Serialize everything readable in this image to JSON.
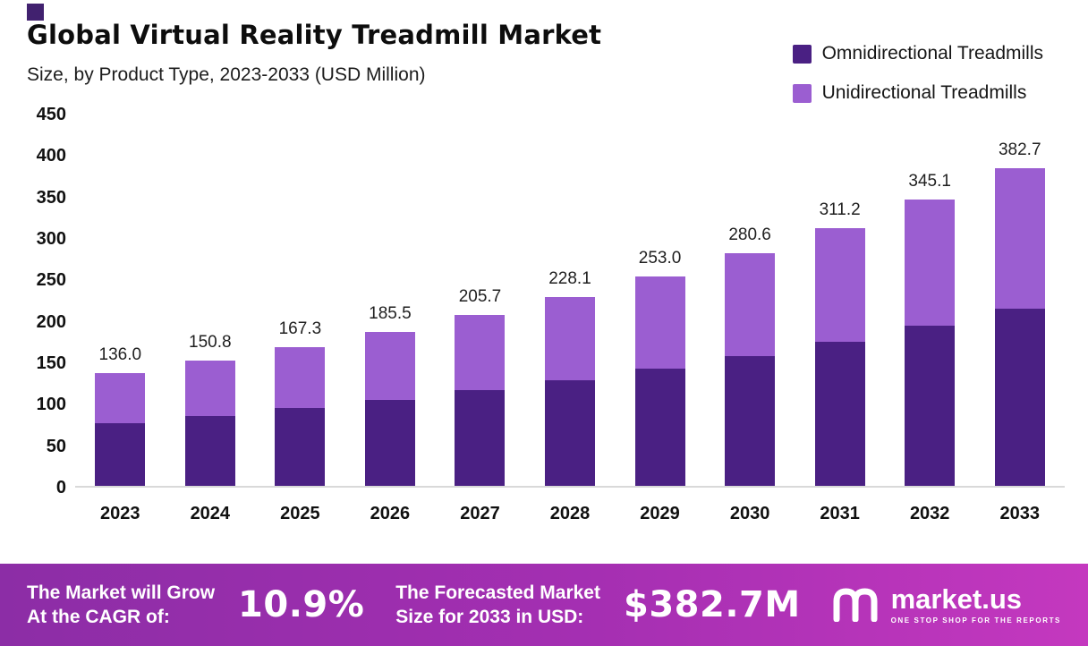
{
  "header": {
    "title": "Global Virtual Reality Treadmill Market",
    "subtitle": "Size, by Product Type, 2023-2033 (USD Million)"
  },
  "legend": [
    {
      "label": "Omnidirectional Treadmills",
      "color": "#4a2083"
    },
    {
      "label": "Unidirectional Treadmills",
      "color": "#9b5ed1"
    }
  ],
  "chart_data": {
    "type": "bar",
    "stacked": true,
    "title": "Global Virtual Reality Treadmill Market Size, by Product Type, 2023-2033 (USD Million)",
    "categories": [
      "2023",
      "2024",
      "2025",
      "2026",
      "2027",
      "2028",
      "2029",
      "2030",
      "2031",
      "2032",
      "2033"
    ],
    "series": [
      {
        "name": "Omnidirectional Treadmills",
        "color": "#4a2083",
        "values": [
          76.0,
          84.3,
          93.5,
          103.7,
          115.0,
          127.5,
          141.4,
          156.8,
          173.9,
          192.9,
          213.9
        ]
      },
      {
        "name": "Unidirectional Treadmills",
        "color": "#9b5ed1",
        "values": [
          60.0,
          66.5,
          73.8,
          81.8,
          90.7,
          100.6,
          111.6,
          123.8,
          137.3,
          152.2,
          168.8
        ]
      }
    ],
    "totals": [
      136.0,
      150.8,
      167.3,
      185.5,
      205.7,
      228.1,
      253.0,
      280.6,
      311.2,
      345.1,
      382.7
    ],
    "total_labels": [
      "136.0",
      "150.8",
      "167.3",
      "185.5",
      "205.7",
      "228.1",
      "253.0",
      "280.6",
      "311.2",
      "345.1",
      "382.7"
    ],
    "xlabel": "",
    "ylabel": "",
    "ylim": [
      0,
      450
    ],
    "yticks": [
      0,
      50,
      100,
      150,
      200,
      250,
      300,
      350,
      400,
      450
    ],
    "grid": false,
    "legend_position": "top-right"
  },
  "footer": {
    "cagr_label_line1": "The Market will Grow",
    "cagr_label_line2": "At the CAGR of:",
    "cagr_value": "10.9%",
    "forecast_label_line1": "The Forecasted Market",
    "forecast_label_line2": "Size for 2033 in USD:",
    "forecast_value": "$382.7M",
    "brand_name": "market.us",
    "brand_tagline": "ONE STOP SHOP FOR THE REPORTS",
    "banner_colors": [
      "#8c2da6",
      "#c438bf"
    ]
  }
}
